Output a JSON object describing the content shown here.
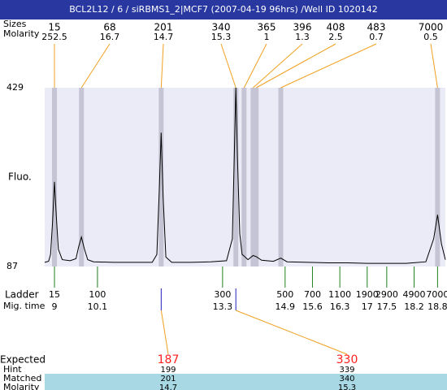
{
  "title": "BCL2L12 / 6 / siRBMS1_2|MCF7 (2007-04-19 96hrs) /Well ID 1020142",
  "chart_data": {
    "type": "line",
    "ylabel": "Fluo.",
    "ylim": [
      87,
      429
    ],
    "yticks": [
      87,
      429
    ],
    "xlim": [
      8.75,
      19.0
    ],
    "background": "#ebebf8",
    "series": [
      {
        "color": "#000000",
        "x": [
          8.75,
          8.85,
          8.9,
          8.95,
          9.0,
          9.05,
          9.1,
          9.2,
          9.4,
          9.55,
          9.62,
          9.69,
          9.76,
          9.85,
          10.0,
          10.5,
          11.0,
          11.5,
          11.62,
          11.68,
          11.73,
          11.78,
          11.85,
          12.0,
          12.5,
          13.0,
          13.4,
          13.55,
          13.6,
          13.64,
          13.68,
          13.74,
          13.8,
          13.85,
          13.95,
          14.08,
          14.16,
          14.3,
          14.6,
          14.79,
          14.95,
          15.5,
          16.0,
          16.5,
          17.0,
          17.5,
          18.0,
          18.5,
          18.7,
          18.8,
          18.9,
          19.0
        ],
        "values": [
          95,
          97,
          110,
          170,
          249,
          180,
          120,
          100,
          98,
          102,
          125,
          143.5,
          122,
          100,
          96,
          95,
          95,
          95,
          110,
          230,
          343,
          220,
          105,
          95,
          95,
          96,
          98,
          140,
          300,
          429,
          300,
          150,
          110,
          107,
          100,
          108,
          106,
          99,
          97,
          103,
          96,
          95,
          94,
          94,
          93,
          93,
          93,
          96,
          140,
          186,
          130,
          100
        ]
      }
    ],
    "peaks": {
      "row_labels": [
        "Sizes",
        "Molarity"
      ],
      "color": "#f0a020",
      "band_color": "#c4c4d4",
      "x": [
        9.0,
        9.69,
        11.73,
        13.64,
        13.85,
        14.08,
        14.16,
        14.79,
        18.8
      ],
      "sizes": [
        15,
        68,
        201,
        340,
        365,
        396,
        408,
        483,
        7000
      ],
      "molarity": [
        252.5,
        16.7,
        14.7,
        15.3,
        1,
        1.3,
        2.5,
        0.7,
        0.5
      ]
    },
    "ladder": {
      "label": "Ladder",
      "time_label": "Mig. time",
      "color": "#208020",
      "sizes": [
        15,
        100,
        300,
        500,
        700,
        1100,
        1900,
        2900,
        4900,
        7000
      ],
      "times": [
        9,
        10.1,
        13.3,
        14.9,
        15.6,
        16.3,
        17,
        17.5,
        18.2,
        18.8
      ]
    },
    "expected": {
      "row_labels": [
        "Expected",
        "Hint",
        "Matched",
        "Molarity"
      ],
      "color": "#ff2020",
      "mark_color": "#2020c0",
      "x": [
        11.73,
        13.64
      ],
      "expected": [
        187,
        330
      ],
      "hint": [
        199,
        339
      ],
      "matched": [
        201,
        340
      ],
      "molarity": [
        14.7,
        15.3
      ]
    }
  }
}
